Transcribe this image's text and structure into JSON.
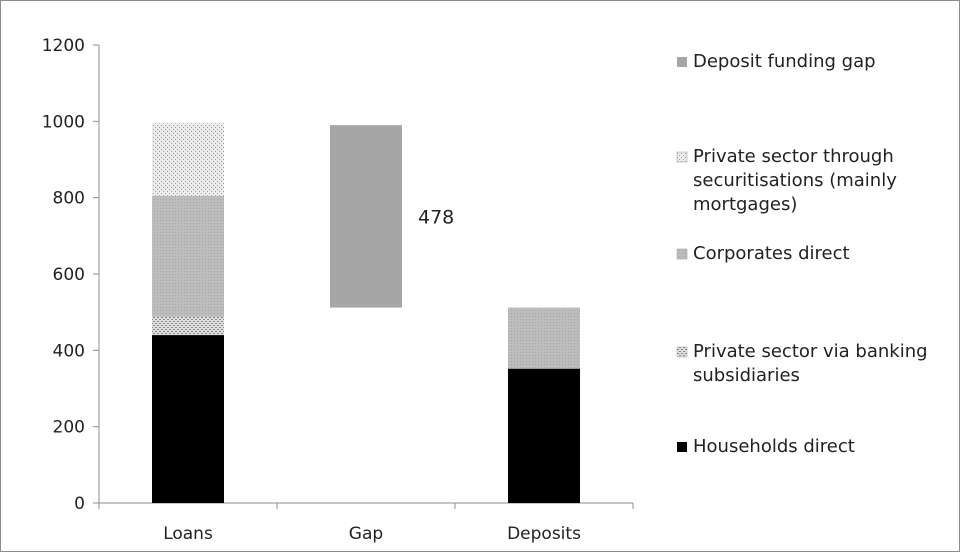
{
  "chart_data": {
    "type": "bar",
    "stacked": true,
    "categories": [
      "Loans",
      "Gap",
      "Deposits"
    ],
    "ylim": [
      0,
      1200
    ],
    "yticks": [
      0,
      200,
      400,
      600,
      800,
      1000,
      1200
    ],
    "grid": false,
    "legend_position": "right",
    "title": "",
    "xlabel": "",
    "ylabel": "",
    "series": [
      {
        "name": "Households direct",
        "color": "#000000",
        "pattern": "solid",
        "segments": [
          {
            "start": 0,
            "end": 440
          },
          null,
          {
            "start": 0,
            "end": 352
          }
        ]
      },
      {
        "name": "Private sector via banking subsidiaries",
        "color": "#d0d0d0",
        "pattern": "dots",
        "segments": [
          {
            "start": 440,
            "end": 488
          },
          null,
          null
        ]
      },
      {
        "name": "Corporates direct",
        "color": "#b8b8b8",
        "pattern": "fine",
        "segments": [
          {
            "start": 488,
            "end": 805
          },
          null,
          {
            "start": 352,
            "end": 512
          }
        ]
      },
      {
        "name": "Private sector through securitisations (mainly mortgages)",
        "color": "#e2e2e2",
        "pattern": "dots",
        "segments": [
          {
            "start": 805,
            "end": 995
          },
          null,
          null
        ]
      },
      {
        "name": "Deposit funding gap",
        "color": "#a6a6a6",
        "pattern": "solid",
        "segments": [
          null,
          {
            "start": 512,
            "end": 990
          },
          null
        ]
      }
    ],
    "annotations": [
      {
        "text": "478",
        "category": "Gap"
      }
    ],
    "legend": [
      {
        "lines": [
          "Deposit funding gap"
        ],
        "series": 4
      },
      {
        "lines": [
          "Private sector through",
          "securitisations (mainly",
          "mortgages)"
        ],
        "series": 3
      },
      {
        "lines": [
          "Corporates direct"
        ],
        "series": 2
      },
      {
        "lines": [
          "Private sector via banking",
          "subsidiaries"
        ],
        "series": 1
      },
      {
        "lines": [
          "Households direct"
        ],
        "series": 0
      }
    ]
  }
}
